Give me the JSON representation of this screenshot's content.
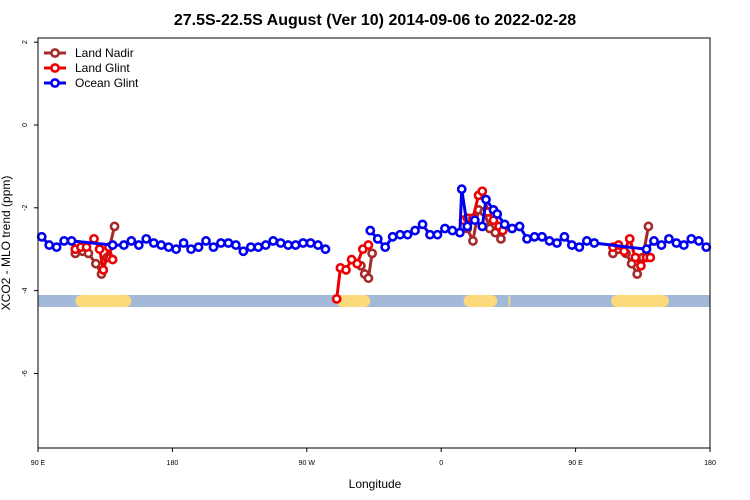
{
  "chart_data": {
    "type": "line",
    "title": "27.5S-22.5S August (Ver 10)   2014-09-06 to 2022-02-28",
    "xlabel": "Longitude",
    "ylabel": "XCO2 - MLO trend (ppm)",
    "xlim": [
      0,
      360
    ],
    "ylim": [
      -7.8,
      2.1
    ],
    "x_ticks": [
      {
        "value": 0,
        "label": "90 E"
      },
      {
        "value": 72,
        "label": "180"
      },
      {
        "value": 144,
        "label": "90 W"
      },
      {
        "value": 216,
        "label": "0"
      },
      {
        "value": 288,
        "label": "90 E"
      },
      {
        "value": 360,
        "label": "180"
      }
    ],
    "y_ticks": [
      {
        "value": 2,
        "label": "2"
      },
      {
        "value": 0,
        "label": "0"
      },
      {
        "value": -2,
        "label": "-2"
      },
      {
        "value": -4,
        "label": "-4"
      },
      {
        "value": -6,
        "label": "-6"
      }
    ],
    "legend_position": "top-left",
    "land_ocean_strip": {
      "y": -4.25,
      "ocean_color": "#a3b9da",
      "land_color": "#fcd97b",
      "land_ranges": [
        [
          20,
          50
        ],
        [
          160,
          178
        ],
        [
          228,
          246
        ],
        [
          252,
          253
        ],
        [
          307,
          338
        ]
      ]
    },
    "series": [
      {
        "name": "Land Nadir",
        "color": "#a52a2a",
        "segments": [
          [
            [
              20,
              -3.1
            ],
            [
              24,
              -3.05
            ],
            [
              27,
              -3.1
            ],
            [
              31,
              -3.35
            ],
            [
              34,
              -3.6
            ],
            [
              37,
              -3.2
            ],
            [
              41,
              -2.45
            ]
          ],
          [
            [
              173,
              -3.4
            ],
            [
              175,
              -3.6
            ],
            [
              177,
              -3.7
            ],
            [
              179,
              -3.1
            ]
          ],
          [
            [
              230,
              -2.5
            ],
            [
              233,
              -2.8
            ],
            [
              236,
              -2.05
            ],
            [
              239,
              -2.1
            ],
            [
              242,
              -2.5
            ],
            [
              245,
              -2.6
            ],
            [
              248,
              -2.75
            ]
          ],
          [
            [
              308,
              -3.1
            ],
            [
              311,
              -3.0
            ],
            [
              315,
              -3.1
            ],
            [
              318,
              -3.35
            ],
            [
              321,
              -3.6
            ],
            [
              324,
              -3.2
            ],
            [
              327,
              -2.45
            ]
          ]
        ]
      },
      {
        "name": "Land Glint",
        "color": "#ee0000",
        "segments": [
          [
            [
              20,
              -3.0
            ],
            [
              23,
              -2.95
            ],
            [
              26,
              -2.95
            ],
            [
              30,
              -2.75
            ],
            [
              33,
              -3.0
            ],
            [
              35,
              -3.5
            ],
            [
              38,
              -2.95
            ],
            [
              40,
              -3.25
            ]
          ],
          [
            [
              160,
              -4.2
            ],
            [
              162,
              -3.45
            ],
            [
              165,
              -3.5
            ],
            [
              168,
              -3.25
            ],
            [
              171,
              -3.35
            ],
            [
              174,
              -3.0
            ],
            [
              177,
              -2.9
            ]
          ],
          [
            [
              228,
              -2.3
            ],
            [
              230,
              -2.25
            ],
            [
              233,
              -2.25
            ],
            [
              236,
              -1.7
            ],
            [
              238,
              -1.6
            ],
            [
              241,
              -2.1
            ],
            [
              244,
              -2.3
            ],
            [
              247,
              -2.45
            ],
            [
              249,
              -2.55
            ]
          ],
          [
            [
              308,
              -2.95
            ],
            [
              311,
              -2.9
            ],
            [
              314,
              -3.05
            ],
            [
              317,
              -2.75
            ],
            [
              320,
              -3.2
            ],
            [
              323,
              -3.4
            ],
            [
              326,
              -3.2
            ],
            [
              328,
              -3.2
            ]
          ]
        ]
      },
      {
        "name": "Ocean Glint",
        "color": "#0000ee",
        "segments": [
          [
            [
              2,
              -2.7
            ],
            [
              6,
              -2.9
            ],
            [
              10,
              -2.95
            ],
            [
              14,
              -2.8
            ],
            [
              18,
              -2.8
            ],
            [
              40,
              -2.9
            ],
            [
              46,
              -2.9
            ],
            [
              50,
              -2.8
            ],
            [
              54,
              -2.9
            ],
            [
              58,
              -2.75
            ],
            [
              62,
              -2.85
            ],
            [
              66,
              -2.9
            ],
            [
              70,
              -2.95
            ],
            [
              74,
              -3.0
            ],
            [
              78,
              -2.85
            ],
            [
              82,
              -3.0
            ],
            [
              86,
              -2.95
            ],
            [
              90,
              -2.8
            ],
            [
              94,
              -2.95
            ],
            [
              98,
              -2.85
            ],
            [
              102,
              -2.85
            ],
            [
              106,
              -2.9
            ],
            [
              110,
              -3.05
            ],
            [
              114,
              -2.95
            ],
            [
              118,
              -2.95
            ],
            [
              122,
              -2.9
            ],
            [
              126,
              -2.8
            ],
            [
              130,
              -2.85
            ],
            [
              134,
              -2.9
            ],
            [
              138,
              -2.9
            ],
            [
              142,
              -2.85
            ],
            [
              146,
              -2.85
            ],
            [
              150,
              -2.9
            ],
            [
              154,
              -3.0
            ]
          ],
          [
            [
              178,
              -2.55
            ],
            [
              182,
              -2.75
            ],
            [
              186,
              -2.95
            ],
            [
              190,
              -2.7
            ],
            [
              194,
              -2.65
            ],
            [
              198,
              -2.65
            ],
            [
              202,
              -2.55
            ],
            [
              206,
              -2.4
            ],
            [
              210,
              -2.65
            ],
            [
              214,
              -2.65
            ],
            [
              218,
              -2.5
            ],
            [
              222,
              -2.55
            ],
            [
              226,
              -2.6
            ],
            [
              227,
              -1.55
            ],
            [
              230,
              -2.45
            ],
            [
              234,
              -2.3
            ],
            [
              238,
              -2.45
            ],
            [
              240,
              -1.8
            ],
            [
              244,
              -2.05
            ],
            [
              246,
              -2.15
            ],
            [
              250,
              -2.4
            ],
            [
              254,
              -2.5
            ],
            [
              258,
              -2.45
            ],
            [
              262,
              -2.75
            ],
            [
              266,
              -2.7
            ],
            [
              270,
              -2.7
            ],
            [
              274,
              -2.8
            ],
            [
              278,
              -2.85
            ],
            [
              282,
              -2.7
            ],
            [
              286,
              -2.9
            ],
            [
              290,
              -2.95
            ],
            [
              294,
              -2.8
            ],
            [
              298,
              -2.85
            ],
            [
              326,
              -3.0
            ],
            [
              330,
              -2.8
            ],
            [
              334,
              -2.9
            ],
            [
              338,
              -2.75
            ],
            [
              342,
              -2.85
            ],
            [
              346,
              -2.9
            ],
            [
              350,
              -2.75
            ],
            [
              354,
              -2.8
            ],
            [
              358,
              -2.95
            ]
          ]
        ]
      }
    ]
  }
}
